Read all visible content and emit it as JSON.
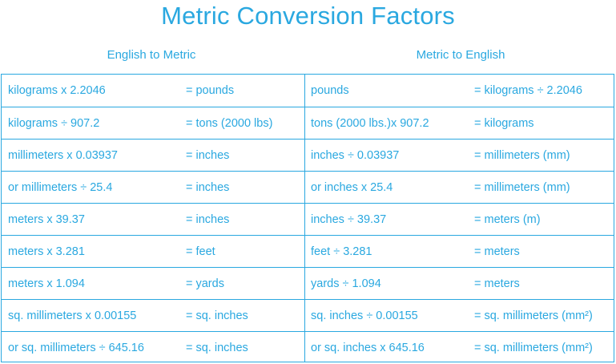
{
  "title": "Metric Conversion Factors",
  "headers": {
    "left": "English to Metric",
    "right": "Metric to English"
  },
  "rows": [
    {
      "e2m_expr": "kilograms x 2.2046",
      "e2m_result": "= pounds",
      "m2e_expr": "pounds",
      "m2e_result": "= kilograms ÷ 2.2046"
    },
    {
      "e2m_expr": "kilograms ÷ 907.2",
      "e2m_result": "= tons (2000 lbs)",
      "m2e_expr": "tons (2000 lbs.)x 907.2",
      "m2e_result": "= kilograms"
    },
    {
      "e2m_expr": "millimeters x 0.03937",
      "e2m_result": "= inches",
      "m2e_expr": "inches ÷ 0.03937",
      "m2e_result": "= millimeters (mm)"
    },
    {
      "e2m_expr": "or millimeters ÷ 25.4",
      "e2m_result": "= inches",
      "m2e_expr": "or inches x 25.4",
      "m2e_result": "= millimeters (mm)"
    },
    {
      "e2m_expr": "meters x 39.37",
      "e2m_result": "= inches",
      "m2e_expr": "inches ÷ 39.37",
      "m2e_result": "= meters (m)"
    },
    {
      "e2m_expr": "meters x 3.281",
      "e2m_result": "= feet",
      "m2e_expr": "feet ÷ 3.281",
      "m2e_result": "= meters"
    },
    {
      "e2m_expr": "meters x 1.094",
      "e2m_result": "= yards",
      "m2e_expr": "yards ÷ 1.094",
      "m2e_result": "= meters"
    },
    {
      "e2m_expr": "sq. millimeters x 0.00155",
      "e2m_result": "= sq. inches",
      "m2e_expr": "sq. inches ÷ 0.00155",
      "m2e_result": "= sq. millimeters (mm²)"
    },
    {
      "e2m_expr": "or sq. millimeters ÷ 645.16",
      "e2m_result": "= sq. inches",
      "m2e_expr": "or sq. inches x 645.16",
      "m2e_result": "= sq. millimeters (mm²)"
    }
  ]
}
